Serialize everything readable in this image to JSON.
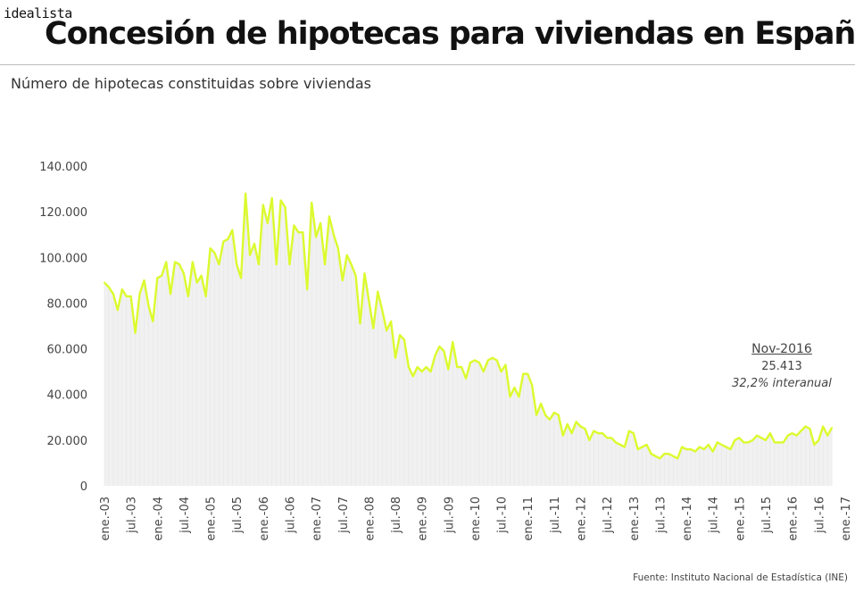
{
  "header": {
    "brand": "idealista",
    "title": "Concesión de hipotecas para viviendas en España",
    "subtitle": "Número de hipotecas constituidas sobre viviendas"
  },
  "annotation": {
    "date": "Nov-2016",
    "value": "25.413",
    "change": "32,2% interanual"
  },
  "footer": {
    "source": "Fuente: Instituto Nacional de Estadística (INE)"
  },
  "colors": {
    "line": "#dcfa2e",
    "fill": "#f1f1f1"
  },
  "chart_data": {
    "type": "area",
    "title": "Concesión de hipotecas para viviendas en España",
    "subtitle": "Número de hipotecas constituidas sobre viviendas",
    "x_start": "2003-01",
    "x_end": "2016-11",
    "frequency": "monthly",
    "ylim": [
      0,
      140000
    ],
    "y_ticks": [
      {
        "value": 0,
        "label": "0"
      },
      {
        "value": 20000,
        "label": "20.000"
      },
      {
        "value": 40000,
        "label": "40.000"
      },
      {
        "value": 60000,
        "label": "60.000"
      },
      {
        "value": 80000,
        "label": "80.000"
      },
      {
        "value": 100000,
        "label": "100.000"
      },
      {
        "value": 120000,
        "label": "120.000"
      },
      {
        "value": 140000,
        "label": "140.000"
      }
    ],
    "x_ticks": [
      {
        "x": "2003-01",
        "label": "ene.-03"
      },
      {
        "x": "2003-07",
        "label": "jul.-03"
      },
      {
        "x": "2004-01",
        "label": "ene.-04"
      },
      {
        "x": "2004-07",
        "label": "jul.-04"
      },
      {
        "x": "2005-01",
        "label": "ene.-05"
      },
      {
        "x": "2005-07",
        "label": "jul.-05"
      },
      {
        "x": "2006-01",
        "label": "ene.-06"
      },
      {
        "x": "2006-07",
        "label": "jul.-06"
      },
      {
        "x": "2007-01",
        "label": "ene.-07"
      },
      {
        "x": "2007-07",
        "label": "jul.-07"
      },
      {
        "x": "2008-01",
        "label": "ene.-08"
      },
      {
        "x": "2008-07",
        "label": "jul.-08"
      },
      {
        "x": "2009-01",
        "label": "ene.-09"
      },
      {
        "x": "2009-07",
        "label": "jul.-09"
      },
      {
        "x": "2010-01",
        "label": "ene.-10"
      },
      {
        "x": "2010-07",
        "label": "jul.-10"
      },
      {
        "x": "2011-01",
        "label": "ene.-11"
      },
      {
        "x": "2011-07",
        "label": "jul.-11"
      },
      {
        "x": "2012-01",
        "label": "ene.-12"
      },
      {
        "x": "2012-07",
        "label": "jul.-12"
      },
      {
        "x": "2013-01",
        "label": "ene.-13"
      },
      {
        "x": "2013-07",
        "label": "jul.-13"
      },
      {
        "x": "2014-01",
        "label": "ene.-14"
      },
      {
        "x": "2014-07",
        "label": "jul.-14"
      },
      {
        "x": "2015-01",
        "label": "ene.-15"
      },
      {
        "x": "2015-07",
        "label": "jul.-15"
      },
      {
        "x": "2016-01",
        "label": "ene.-16"
      },
      {
        "x": "2016-07",
        "label": "jul.-16"
      },
      {
        "x": "2017-01",
        "label": "ene.-17"
      }
    ],
    "grid": false,
    "legend": "none",
    "series": [
      {
        "values": [
          89000,
          87000,
          84000,
          77000,
          86000,
          83000,
          83000,
          67000,
          84000,
          90000,
          79000,
          72000,
          91000,
          92000,
          98000,
          84000,
          98000,
          97000,
          93000,
          83000,
          98000,
          89000,
          92000,
          83000,
          104000,
          102000,
          97000,
          107000,
          108000,
          112000,
          97000,
          91000,
          128000,
          101000,
          106000,
          97000,
          123000,
          115000,
          126000,
          97000,
          125000,
          122000,
          97000,
          114000,
          111000,
          111000,
          86000,
          124000,
          109000,
          115000,
          97000,
          118000,
          110000,
          104000,
          90000,
          101000,
          97000,
          92000,
          71000,
          93000,
          81000,
          69000,
          85000,
          77000,
          68000,
          72000,
          56000,
          66000,
          64000,
          52000,
          48000,
          52000,
          50000,
          52000,
          50000,
          57000,
          61000,
          59000,
          51000,
          63000,
          52000,
          52000,
          47000,
          54000,
          55000,
          54000,
          50000,
          55000,
          56000,
          55000,
          50000,
          53000,
          39000,
          43000,
          39000,
          49000,
          49000,
          44000,
          31000,
          36000,
          31000,
          29000,
          32000,
          31000,
          22000,
          27000,
          23000,
          28000,
          26000,
          25000,
          20000,
          24000,
          23000,
          23000,
          21000,
          21000,
          19000,
          18000,
          17000,
          24000,
          23000,
          16000,
          17000,
          18000,
          14000,
          13000,
          12000,
          14000,
          14000,
          13000,
          12000,
          17000,
          16000,
          16000,
          15000,
          17000,
          16000,
          18000,
          15000,
          19000,
          18000,
          17000,
          16000,
          20000,
          21000,
          19000,
          19000,
          20000,
          22000,
          21000,
          20000,
          23000,
          19000,
          19000,
          19000,
          22000,
          23000,
          22000,
          24000,
          26000,
          25000,
          18000,
          20000,
          26000,
          22000,
          25413
        ]
      }
    ]
  }
}
